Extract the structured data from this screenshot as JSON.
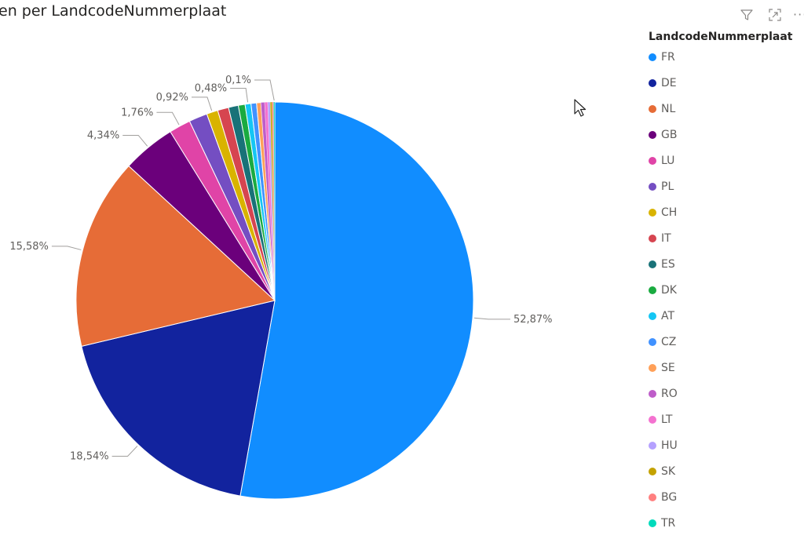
{
  "visual": {
    "title": "en per LandcodeNummerplaat",
    "toolbar": {
      "filter_icon": "filter-icon",
      "focus_icon": "focus-mode-icon",
      "more_icon": "more-options-icon",
      "more_glyph": "···"
    }
  },
  "chart_data": {
    "type": "pie",
    "title": "",
    "legend": {
      "title": "LandcodeNummerplaat",
      "placement": "right",
      "entries": [
        "FR",
        "DE",
        "NL",
        "GB",
        "LU",
        "PL",
        "CH",
        "IT",
        "ES",
        "DK",
        "AT",
        "CZ",
        "SE",
        "RO",
        "LT",
        "HU",
        "SK",
        "BG",
        "TR"
      ]
    },
    "slices": [
      {
        "label": "FR",
        "value": 52.87,
        "color": "#118DFF",
        "data_label": "52,87%"
      },
      {
        "label": "DE",
        "value": 18.54,
        "color": "#12239E",
        "data_label": "18,54%"
      },
      {
        "label": "NL",
        "value": 15.58,
        "color": "#E66C37",
        "data_label": "15,58%"
      },
      {
        "label": "GB",
        "value": 4.34,
        "color": "#6B007B",
        "data_label": "4,34%"
      },
      {
        "label": "LU",
        "value": 1.76,
        "color": "#E044A7",
        "data_label": "1,76%"
      },
      {
        "label": "PL",
        "value": 1.5,
        "color": "#744EC2",
        "data_label": ""
      },
      {
        "label": "CH",
        "value": 0.92,
        "color": "#D9B300",
        "data_label": "0,92%"
      },
      {
        "label": "IT",
        "value": 0.9,
        "color": "#D64550",
        "data_label": ""
      },
      {
        "label": "ES",
        "value": 0.8,
        "color": "#197278",
        "data_label": ""
      },
      {
        "label": "DK",
        "value": 0.55,
        "color": "#1AAB40",
        "data_label": ""
      },
      {
        "label": "AT",
        "value": 0.48,
        "color": "#15C6F4",
        "data_label": "0,48%"
      },
      {
        "label": "CZ",
        "value": 0.45,
        "color": "#4092FF",
        "data_label": ""
      },
      {
        "label": "SE",
        "value": 0.35,
        "color": "#FFA058",
        "data_label": ""
      },
      {
        "label": "RO",
        "value": 0.3,
        "color": "#BE5DC9",
        "data_label": ""
      },
      {
        "label": "LT",
        "value": 0.25,
        "color": "#F472D0",
        "data_label": ""
      },
      {
        "label": "HU",
        "value": 0.2,
        "color": "#B5A1FF",
        "data_label": ""
      },
      {
        "label": "SK",
        "value": 0.15,
        "color": "#C4A200",
        "data_label": ""
      },
      {
        "label": "BG",
        "value": 0.12,
        "color": "#FF8080",
        "data_label": ""
      },
      {
        "label": "TR",
        "value": 0.1,
        "color": "#00DBBC",
        "data_label": "0,1%"
      }
    ]
  }
}
